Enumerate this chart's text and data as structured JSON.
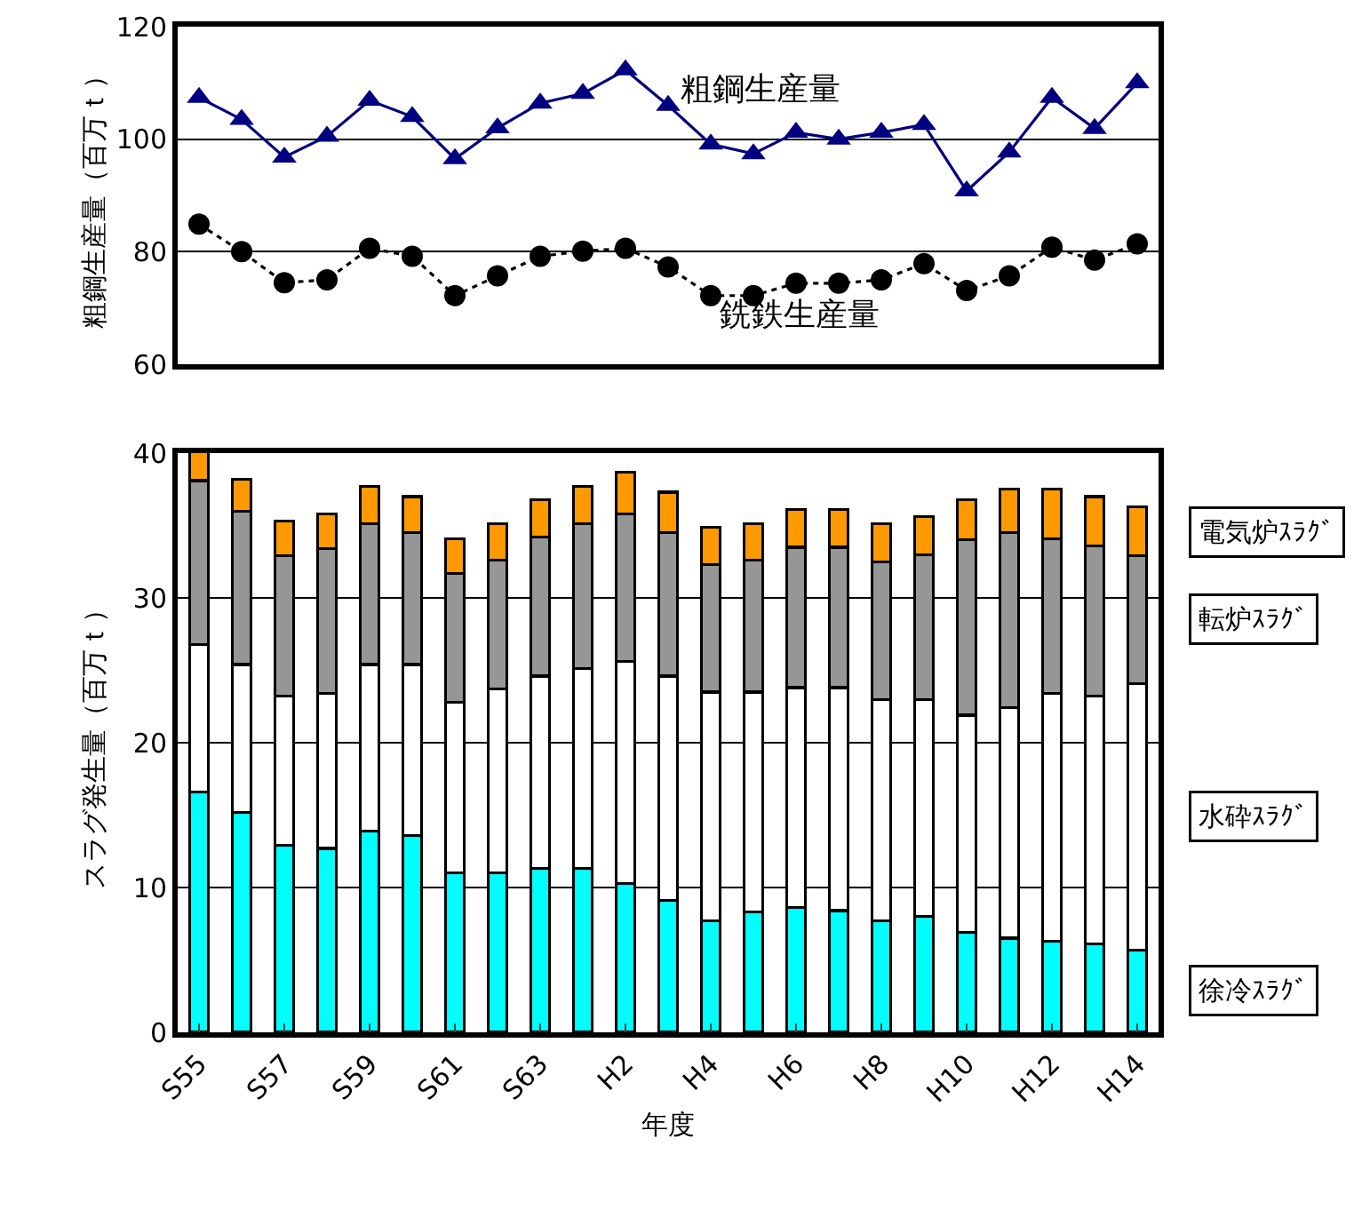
{
  "chart_data": [
    {
      "type": "line",
      "ylabel": "粗鋼生産量（百万ｔ）",
      "categories": [
        null,
        null,
        null,
        null,
        null,
        null,
        null,
        null,
        null,
        null,
        null,
        null,
        null,
        null,
        null,
        null,
        null,
        null,
        null,
        null,
        null,
        null,
        null
      ],
      "ylim": [
        60,
        120
      ],
      "yticks": [
        60,
        80,
        100,
        120
      ],
      "grid": "y",
      "legend": false,
      "tick_labels": "y",
      "series": [
        {
          "name": "粗鋼生産量",
          "color": "#000080",
          "marker": "triangle",
          "line_style": "solid",
          "values": [
            107.4,
            103.5,
            96.8,
            100.5,
            106.9,
            104,
            96.5,
            102,
            106.4,
            108.1,
            112.3,
            106,
            99.1,
            97.4,
            101.2,
            100,
            101.2,
            102.6,
            90.8,
            97.7,
            107.4,
            101.9,
            110
          ]
        },
        {
          "name": "銑鉄生産量",
          "color": "#000000",
          "marker": "circle",
          "line_style": "dotted",
          "values": [
            84.9,
            80,
            74.5,
            75,
            80.6,
            79.2,
            72.2,
            75.7,
            79.2,
            80.1,
            80.6,
            77.3,
            72.2,
            72.2,
            74.4,
            74.4,
            75,
            77.9,
            73.1,
            75.7,
            80.8,
            78.5,
            81.4
          ]
        }
      ]
    },
    {
      "type": "bar",
      "stacked": true,
      "xlabel": "年度",
      "ylabel": "スラグ発生量（百万ｔ）",
      "categories": [
        "S55",
        null,
        "S57",
        null,
        "S59",
        null,
        "S61",
        null,
        "S63",
        null,
        "H2",
        null,
        "H4",
        null,
        "H6",
        null,
        "H8",
        null,
        "H10",
        null,
        "H12",
        null,
        "H14"
      ],
      "ylim": [
        0,
        40
      ],
      "yticks": [
        0,
        10,
        20,
        30,
        40
      ],
      "grid": "y",
      "legend": false,
      "series": [
        {
          "name": "徐冷ｽﾗｸﾞ",
          "color": "#00ffff",
          "values": [
            16.6,
            15.2,
            12.9,
            12.7,
            13.9,
            13.6,
            11.0,
            11.0,
            11.3,
            11.3,
            10.3,
            9.1,
            7.7,
            8.3,
            8.6,
            8.4,
            7.7,
            8.0,
            6.9,
            6.5,
            6.3,
            6.1,
            5.7
          ]
        },
        {
          "name": "水砕ｽﾗｸﾞ",
          "color": "#ffffff",
          "values": [
            10.2,
            10.2,
            10.3,
            10.7,
            11.5,
            11.8,
            11.8,
            12.7,
            13.3,
            13.8,
            15.3,
            15.5,
            15.8,
            15.2,
            15.2,
            15.4,
            15.3,
            15.0,
            15.0,
            15.9,
            17.1,
            17.1,
            18.4
          ]
        },
        {
          "name": "転炉ｽﾗｸﾞ",
          "color": "#969696",
          "values": [
            11.3,
            10.6,
            9.7,
            10.0,
            9.7,
            9.1,
            8.9,
            8.9,
            9.6,
            10.0,
            10.2,
            9.9,
            8.8,
            9.1,
            9.7,
            9.7,
            9.5,
            10.0,
            12.1,
            12.1,
            10.7,
            10.4,
            8.8
          ]
        },
        {
          "name": "電気炉ｽﾗｸﾞ",
          "color": "#ff9900",
          "values": [
            2.0,
            2.2,
            2.4,
            2.4,
            2.6,
            2.5,
            2.4,
            2.5,
            2.6,
            2.6,
            2.9,
            2.8,
            2.6,
            2.5,
            2.6,
            2.6,
            2.6,
            2.6,
            2.8,
            3.0,
            3.4,
            3.4,
            3.4
          ]
        }
      ]
    }
  ]
}
